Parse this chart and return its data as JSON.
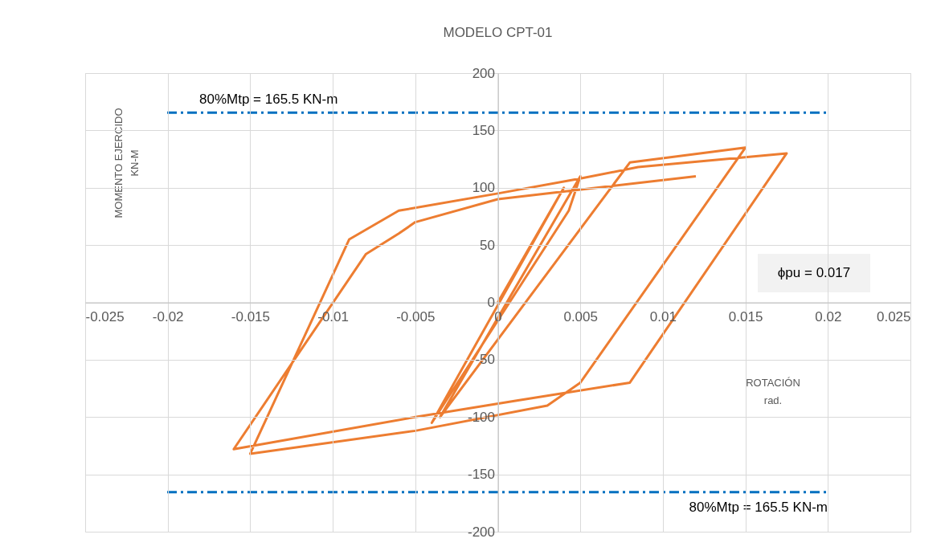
{
  "chart_data": {
    "type": "line",
    "title": "MODELO CPT-01",
    "xlabel": "ROTACIÓN\nrad.",
    "ylabel": "MOMENTO EJERCIDO\nKN-M",
    "series": [
      {
        "color": "#ed7d31",
        "x": [
          0,
          0.004,
          -0.004,
          0.0043,
          0.005,
          -0.0035,
          0.008,
          0.015,
          0.005,
          0.003,
          -0.005,
          -0.015,
          -0.009,
          -0.006,
          0,
          0.005,
          0.0085,
          0.0175,
          0.008,
          0.001,
          -0.005,
          -0.016,
          -0.008,
          -0.006,
          -0.005,
          0,
          0.012
        ],
        "values": [
          0,
          100,
          -105,
          80,
          110,
          -100,
          122,
          135,
          -70,
          -90,
          -112,
          -132,
          55,
          80,
          95,
          108,
          118,
          130,
          -70,
          -86,
          -100,
          -128,
          42,
          60,
          70,
          90,
          110
        ]
      }
    ],
    "xlim": [
      -0.025,
      0.025
    ],
    "xticks": [
      -0.025,
      -0.02,
      -0.015,
      -0.01,
      -0.005,
      0,
      0.005,
      0.01,
      0.015,
      0.02,
      0.025
    ],
    "ylim": [
      -200,
      200
    ],
    "yticks": [
      -200,
      -150,
      -100,
      -50,
      0,
      50,
      100,
      150,
      200
    ],
    "grid": true,
    "ref_lines": [
      {
        "axis": "y",
        "value": 165.5,
        "label": "80%Mtp = 165.5 KN-m",
        "color": "#0070c0",
        "line_style": "dashdot"
      },
      {
        "axis": "y",
        "value": -165.5,
        "color": "#0070c0",
        "line_style": "dashdot"
      }
    ],
    "annotations": [
      "ϕpu = 0.017",
      "80%Mtp = 165.5 KN-m"
    ]
  }
}
